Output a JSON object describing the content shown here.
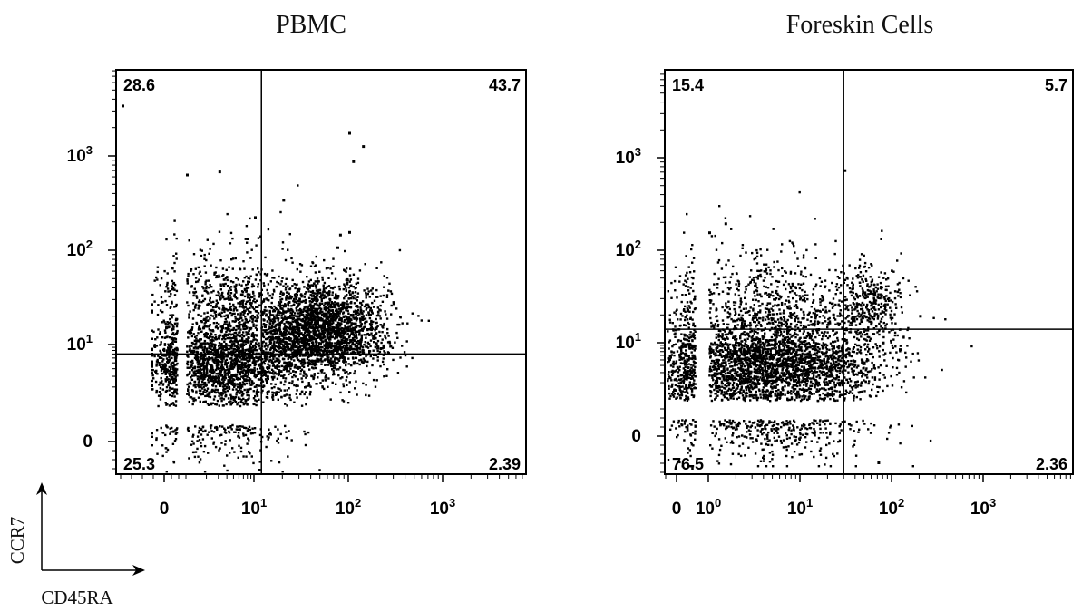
{
  "chart_data": [
    {
      "type": "scatter",
      "title": "PBMC",
      "xlabel": "CD45RA",
      "ylabel": "CCR7",
      "x_scale": "biexponential",
      "y_scale": "biexponential",
      "x_ticks": [
        {
          "value": 0,
          "base": "0",
          "exp": ""
        },
        {
          "value": 10,
          "base": "10",
          "exp": "1"
        },
        {
          "value": 100,
          "base": "10",
          "exp": "2"
        },
        {
          "value": 1000,
          "base": "10",
          "exp": "3"
        }
      ],
      "y_ticks": [
        {
          "value": 0,
          "base": "0",
          "exp": ""
        },
        {
          "value": 10,
          "base": "10",
          "exp": "1"
        },
        {
          "value": 100,
          "base": "10",
          "exp": "2"
        },
        {
          "value": 1000,
          "base": "10",
          "exp": "3"
        }
      ],
      "gate": {
        "x": 12,
        "y": 7
      },
      "quadrants": {
        "upper_left": "28.6",
        "upper_right": "43.7",
        "lower_left": "25.3",
        "lower_right": "2.39"
      },
      "populations": [
        {
          "x_center": 3.5,
          "y_center": 6.5,
          "x_spread": 0.55,
          "y_spread": 0.55,
          "share": 0.5
        },
        {
          "x_center": 50,
          "y_center": 15,
          "x_spread": 0.35,
          "y_spread": 0.25,
          "share": 0.45
        },
        {
          "x_center": 20,
          "y_center": 5,
          "x_spread": 0.5,
          "y_spread": 0.35,
          "share": 0.05
        }
      ],
      "outliers": [
        [
          -5,
          3500
        ],
        [
          1,
          650
        ],
        [
          3,
          700
        ],
        [
          10,
          230
        ],
        [
          20,
          350
        ],
        [
          100,
          1800
        ],
        [
          110,
          900
        ],
        [
          140,
          1300
        ],
        [
          80,
          150
        ],
        [
          100,
          160
        ],
        [
          75,
          110
        ]
      ]
    },
    {
      "type": "scatter",
      "title": "Foreskin Cells",
      "xlabel": "CD45RA",
      "ylabel": "CCR7",
      "x_scale": "biexponential",
      "y_scale": "biexponential",
      "x_ticks": [
        {
          "value": 0,
          "base": "0",
          "exp": ""
        },
        {
          "value": 1,
          "base": "10",
          "exp": "0"
        },
        {
          "value": 10,
          "base": "10",
          "exp": "1"
        },
        {
          "value": 100,
          "base": "10",
          "exp": "2"
        },
        {
          "value": 1000,
          "base": "10",
          "exp": "3"
        }
      ],
      "y_ticks": [
        {
          "value": 0,
          "base": "0",
          "exp": ""
        },
        {
          "value": 10,
          "base": "10",
          "exp": "1"
        },
        {
          "value": 100,
          "base": "10",
          "exp": "2"
        },
        {
          "value": 1000,
          "base": "10",
          "exp": "3"
        }
      ],
      "gate": {
        "x": 30,
        "y": 14
      },
      "quadrants": {
        "upper_left": "15.4",
        "upper_right": "5.7",
        "lower_left": "76.5",
        "lower_right": "2.36"
      },
      "populations": [
        {
          "x_center": 4,
          "y_center": 5,
          "x_spread": 0.6,
          "y_spread": 0.55,
          "share": 0.9
        },
        {
          "x_center": 55,
          "y_center": 28,
          "x_spread": 0.18,
          "y_spread": 0.2,
          "share": 0.07
        },
        {
          "x_center": 40,
          "y_center": 5,
          "x_spread": 0.25,
          "y_spread": 0.35,
          "share": 0.03
        }
      ],
      "outliers": [
        [
          30,
          750
        ],
        [
          1.5,
          200
        ],
        [
          1,
          160
        ],
        [
          200,
          20
        ],
        [
          120,
          8
        ],
        [
          70,
          -2
        ]
      ]
    }
  ],
  "axis_legend": {
    "y_label": "CCR7",
    "x_label": "CD45RA"
  }
}
